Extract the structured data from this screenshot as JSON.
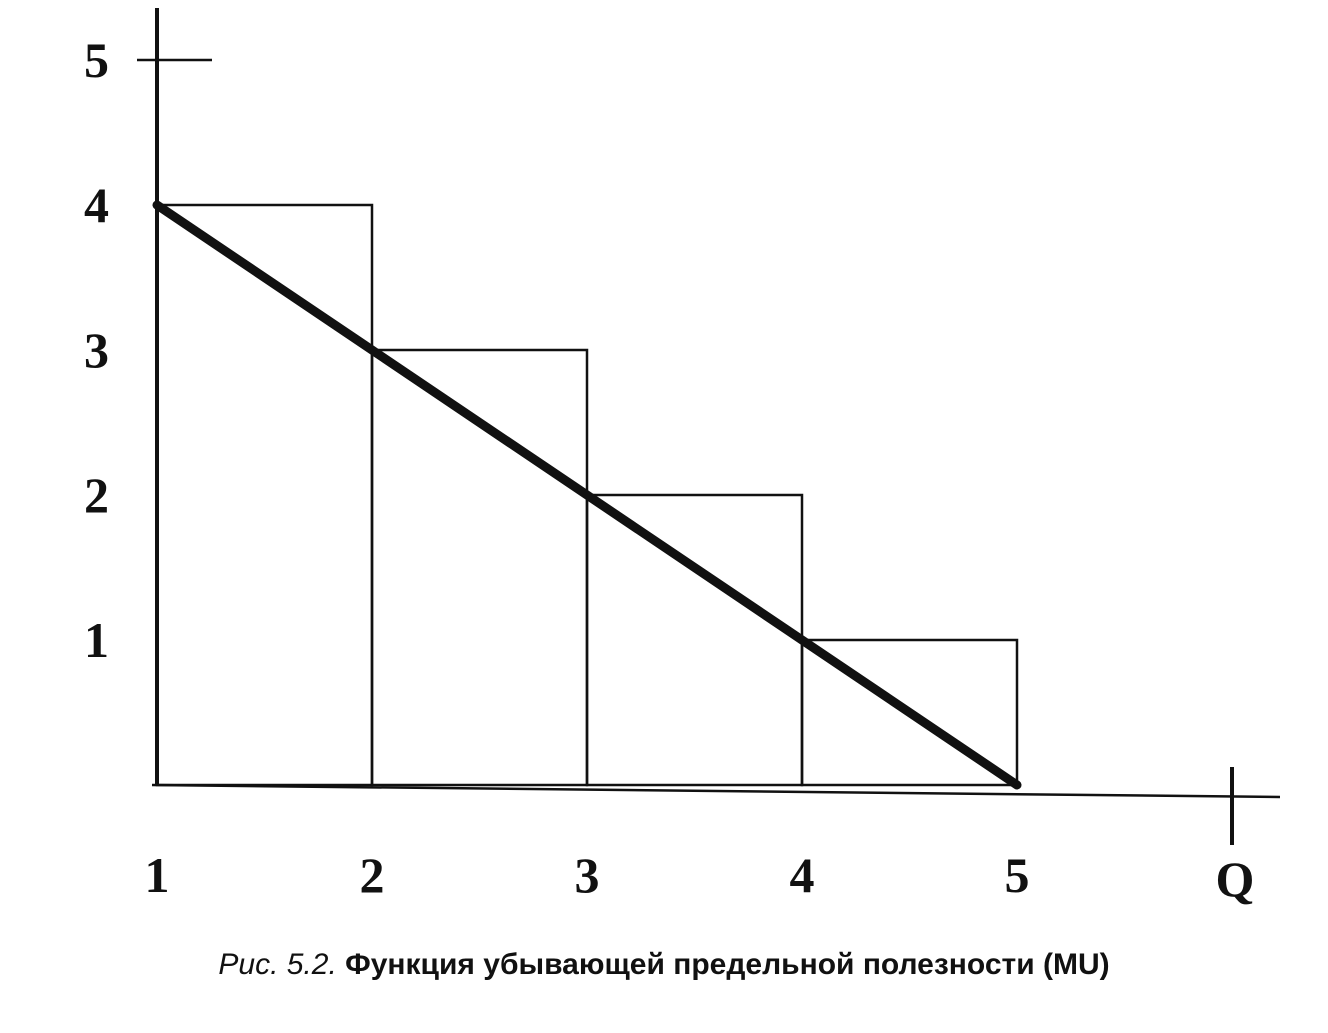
{
  "chart_data": {
    "type": "line",
    "title": "",
    "xlabel": "Q",
    "ylabel": "",
    "x_ticks": [
      "1",
      "2",
      "3",
      "4",
      "5"
    ],
    "y_ticks": [
      "1",
      "2",
      "3",
      "4",
      "5"
    ],
    "xlim": [
      1,
      5
    ],
    "ylim": [
      0,
      5
    ],
    "series": [
      {
        "x": [
          1,
          2,
          3,
          4,
          5
        ],
        "y": [
          4,
          3,
          2,
          1,
          0
        ]
      }
    ],
    "bars": [
      {
        "x_start": 1,
        "x_end": 2,
        "height": 4
      },
      {
        "x_start": 2,
        "x_end": 3,
        "height": 3
      },
      {
        "x_start": 3,
        "x_end": 4,
        "height": 2
      },
      {
        "x_start": 4,
        "x_end": 5,
        "height": 1
      }
    ],
    "grid": false,
    "line_color": "#111111",
    "bar_stroke_color": "#111111"
  },
  "caption": {
    "figure_label": "Рис. 5.2.",
    "text": "Функция убывающей предельной полезности (MU)"
  }
}
